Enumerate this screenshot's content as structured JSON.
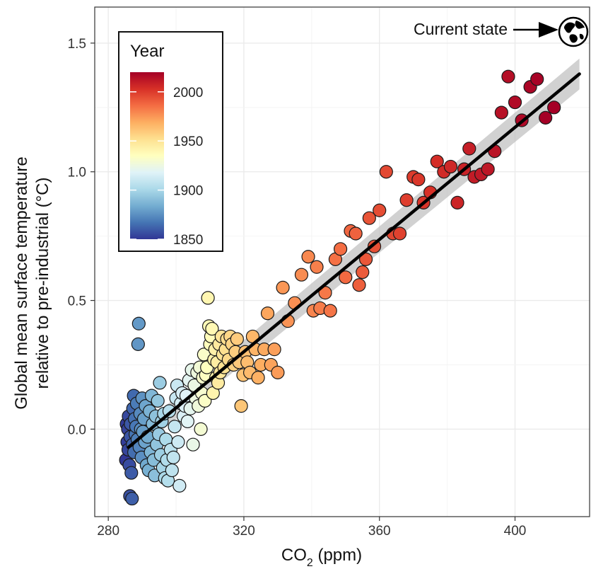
{
  "chart_data": {
    "type": "scatter",
    "title": "",
    "xlabel": "CO",
    "xlabel_subscript": "2",
    "xlabel_suffix": " (ppm)",
    "ylabel_line1": "Global mean surface temperature",
    "ylabel_line2": "relative to pre-industrial (°C)",
    "xlim": [
      276,
      422
    ],
    "ylim": [
      -0.34,
      1.64
    ],
    "xticks": [
      280,
      320,
      360,
      400
    ],
    "xtick_labels": [
      "280",
      "320",
      "360",
      "400"
    ],
    "yticks": [
      0.0,
      0.5,
      1.0,
      1.5
    ],
    "ytick_labels": [
      "0.0",
      "0.5",
      "1.0",
      "1.5"
    ],
    "grid": true,
    "legend": {
      "title": "Year",
      "placement": "top-left",
      "range": [
        1850,
        2020
      ],
      "tick_values": [
        1850,
        1900,
        1950,
        2000
      ],
      "tick_labels": [
        "1850",
        "1900",
        "1950",
        "2000"
      ],
      "colors": [
        "#313695",
        "#4575b4",
        "#74add1",
        "#abd9e9",
        "#e0f3f8",
        "#ffffbf",
        "#fee090",
        "#fdae61",
        "#f46d43",
        "#d73027",
        "#a50026"
      ]
    },
    "fit_line": {
      "x": [
        286,
        419
      ],
      "y": [
        -0.07,
        1.38
      ],
      "ci_halfwidth_start": 0.04,
      "ci_halfwidth_end": 0.06,
      "color": "#000000"
    },
    "annotation": {
      "text": "Current state",
      "arrow_to_x": 418,
      "arrow_y": 1.54,
      "icon": "globe-icon"
    },
    "points": [
      {
        "x": 285.2,
        "y": -0.12,
        "year": 1850
      },
      {
        "x": 285.4,
        "y": 0.02,
        "year": 1851
      },
      {
        "x": 285.6,
        "y": -0.05,
        "year": 1852
      },
      {
        "x": 285.8,
        "y": 0.0,
        "year": 1853
      },
      {
        "x": 285.9,
        "y": -0.08,
        "year": 1854
      },
      {
        "x": 286.0,
        "y": 0.05,
        "year": 1855
      },
      {
        "x": 286.2,
        "y": -0.14,
        "year": 1856
      },
      {
        "x": 286.4,
        "y": -0.26,
        "year": 1857
      },
      {
        "x": 286.5,
        "y": -0.03,
        "year": 1858
      },
      {
        "x": 286.6,
        "y": 0.02,
        "year": 1859
      },
      {
        "x": 286.8,
        "y": -0.17,
        "year": 1860
      },
      {
        "x": 287.0,
        "y": -0.27,
        "year": 1861
      },
      {
        "x": 287.2,
        "y": -0.06,
        "year": 1862
      },
      {
        "x": 287.3,
        "y": 0.08,
        "year": 1863
      },
      {
        "x": 287.5,
        "y": 0.13,
        "year": 1864
      },
      {
        "x": 287.6,
        "y": -0.09,
        "year": 1865
      },
      {
        "x": 287.8,
        "y": 0.04,
        "year": 1866
      },
      {
        "x": 288.0,
        "y": -0.02,
        "year": 1867
      },
      {
        "x": 288.2,
        "y": 0.01,
        "year": 1868
      },
      {
        "x": 288.4,
        "y": 0.1,
        "year": 1869
      },
      {
        "x": 288.6,
        "y": -0.04,
        "year": 1870
      },
      {
        "x": 288.8,
        "y": 0.33,
        "year": 1877
      },
      {
        "x": 289.0,
        "y": 0.41,
        "year": 1878
      },
      {
        "x": 289.2,
        "y": -0.07,
        "year": 1872
      },
      {
        "x": 289.4,
        "y": 0.06,
        "year": 1873
      },
      {
        "x": 289.6,
        "y": 0.0,
        "year": 1874
      },
      {
        "x": 289.8,
        "y": -0.11,
        "year": 1875
      },
      {
        "x": 290.0,
        "y": 0.12,
        "year": 1876
      },
      {
        "x": 290.2,
        "y": -0.01,
        "year": 1879
      },
      {
        "x": 290.5,
        "y": 0.04,
        "year": 1880
      },
      {
        "x": 290.8,
        "y": -0.05,
        "year": 1881
      },
      {
        "x": 291.0,
        "y": 0.09,
        "year": 1882
      },
      {
        "x": 291.3,
        "y": -0.14,
        "year": 1883
      },
      {
        "x": 291.6,
        "y": -0.03,
        "year": 1884
      },
      {
        "x": 291.9,
        "y": -0.16,
        "year": 1885
      },
      {
        "x": 292.2,
        "y": 0.07,
        "year": 1886
      },
      {
        "x": 292.5,
        "y": -0.09,
        "year": 1887
      },
      {
        "x": 292.8,
        "y": 0.13,
        "year": 1888
      },
      {
        "x": 293.1,
        "y": 0.02,
        "year": 1889
      },
      {
        "x": 293.4,
        "y": -0.12,
        "year": 1890
      },
      {
        "x": 293.7,
        "y": -0.18,
        "year": 1891
      },
      {
        "x": 294.0,
        "y": 0.05,
        "year": 1892
      },
      {
        "x": 294.3,
        "y": -0.06,
        "year": 1893
      },
      {
        "x": 294.6,
        "y": 0.11,
        "year": 1894
      },
      {
        "x": 294.9,
        "y": -0.02,
        "year": 1895
      },
      {
        "x": 295.2,
        "y": 0.18,
        "year": 1896
      },
      {
        "x": 295.5,
        "y": -0.1,
        "year": 1897
      },
      {
        "x": 295.8,
        "y": 0.03,
        "year": 1898
      },
      {
        "x": 296.1,
        "y": -0.15,
        "year": 1899
      },
      {
        "x": 296.4,
        "y": 0.06,
        "year": 1900
      },
      {
        "x": 296.7,
        "y": -0.19,
        "year": 1901
      },
      {
        "x": 297.0,
        "y": -0.04,
        "year": 1902
      },
      {
        "x": 297.3,
        "y": -0.12,
        "year": 1903
      },
      {
        "x": 297.6,
        "y": -0.2,
        "year": 1904
      },
      {
        "x": 298.0,
        "y": 0.07,
        "year": 1905
      },
      {
        "x": 298.4,
        "y": -0.08,
        "year": 1906
      },
      {
        "x": 298.8,
        "y": -0.16,
        "year": 1907
      },
      {
        "x": 299.2,
        "y": -0.11,
        "year": 1908
      },
      {
        "x": 299.6,
        "y": 0.01,
        "year": 1909
      },
      {
        "x": 300.0,
        "y": 0.12,
        "year": 1910
      },
      {
        "x": 300.3,
        "y": 0.17,
        "year": 1911
      },
      {
        "x": 300.6,
        "y": -0.05,
        "year": 1912
      },
      {
        "x": 301.0,
        "y": -0.22,
        "year": 1913
      },
      {
        "x": 301.4,
        "y": 0.1,
        "year": 1914
      },
      {
        "x": 301.8,
        "y": 0.14,
        "year": 1915
      },
      {
        "x": 302.2,
        "y": 0.05,
        "year": 1916
      },
      {
        "x": 302.6,
        "y": 0.09,
        "year": 1917
      },
      {
        "x": 303.0,
        "y": 0.13,
        "year": 1918
      },
      {
        "x": 303.4,
        "y": 0.03,
        "year": 1919
      },
      {
        "x": 303.8,
        "y": 0.19,
        "year": 1920
      },
      {
        "x": 304.2,
        "y": 0.08,
        "year": 1921
      },
      {
        "x": 304.6,
        "y": 0.23,
        "year": 1922
      },
      {
        "x": 305.0,
        "y": -0.06,
        "year": 1923
      },
      {
        "x": 305.4,
        "y": 0.17,
        "year": 1924
      },
      {
        "x": 305.8,
        "y": 0.12,
        "year": 1925
      },
      {
        "x": 306.2,
        "y": 0.22,
        "year": 1926
      },
      {
        "x": 306.6,
        "y": 0.09,
        "year": 1927
      },
      {
        "x": 307.0,
        "y": 0.24,
        "year": 1928
      },
      {
        "x": 307.3,
        "y": 0.0,
        "year": 1929
      },
      {
        "x": 307.6,
        "y": 0.14,
        "year": 1930
      },
      {
        "x": 307.9,
        "y": 0.2,
        "year": 1931
      },
      {
        "x": 308.2,
        "y": 0.29,
        "year": 1932
      },
      {
        "x": 308.5,
        "y": 0.11,
        "year": 1933
      },
      {
        "x": 308.8,
        "y": 0.21,
        "year": 1934
      },
      {
        "x": 309.1,
        "y": 0.24,
        "year": 1935
      },
      {
        "x": 309.4,
        "y": 0.51,
        "year": 1940
      },
      {
        "x": 309.7,
        "y": 0.4,
        "year": 1938
      },
      {
        "x": 310.0,
        "y": 0.33,
        "year": 1936
      },
      {
        "x": 310.3,
        "y": 0.36,
        "year": 1937
      },
      {
        "x": 310.6,
        "y": 0.39,
        "year": 1939
      },
      {
        "x": 310.9,
        "y": 0.14,
        "year": 1941
      },
      {
        "x": 311.2,
        "y": 0.27,
        "year": 1942
      },
      {
        "x": 311.5,
        "y": 0.31,
        "year": 1943
      },
      {
        "x": 311.8,
        "y": 0.2,
        "year": 1944
      },
      {
        "x": 312.1,
        "y": 0.26,
        "year": 1945
      },
      {
        "x": 312.4,
        "y": 0.18,
        "year": 1946
      },
      {
        "x": 312.7,
        "y": 0.33,
        "year": 1947
      },
      {
        "x": 313.0,
        "y": 0.22,
        "year": 1948
      },
      {
        "x": 313.4,
        "y": 0.36,
        "year": 1949
      },
      {
        "x": 313.8,
        "y": 0.29,
        "year": 1950
      },
      {
        "x": 314.2,
        "y": 0.24,
        "year": 1951
      },
      {
        "x": 314.6,
        "y": 0.31,
        "year": 1952
      },
      {
        "x": 315.0,
        "y": 0.35,
        "year": 1953
      },
      {
        "x": 315.5,
        "y": 0.27,
        "year": 1954
      },
      {
        "x": 316.0,
        "y": 0.36,
        "year": 1955
      },
      {
        "x": 316.5,
        "y": 0.33,
        "year": 1956
      },
      {
        "x": 317.0,
        "y": 0.25,
        "year": 1957
      },
      {
        "x": 317.5,
        "y": 0.3,
        "year": 1958
      },
      {
        "x": 318.0,
        "y": 0.35,
        "year": 1959
      },
      {
        "x": 318.6,
        "y": 0.26,
        "year": 1960
      },
      {
        "x": 319.2,
        "y": 0.09,
        "year": 1961
      },
      {
        "x": 319.8,
        "y": 0.21,
        "year": 1962
      },
      {
        "x": 320.4,
        "y": 0.3,
        "year": 1963
      },
      {
        "x": 321.0,
        "y": 0.26,
        "year": 1964
      },
      {
        "x": 321.8,
        "y": 0.22,
        "year": 1965
      },
      {
        "x": 322.6,
        "y": 0.36,
        "year": 1966
      },
      {
        "x": 323.4,
        "y": 0.31,
        "year": 1967
      },
      {
        "x": 324.2,
        "y": 0.2,
        "year": 1968
      },
      {
        "x": 325.0,
        "y": 0.25,
        "year": 1969
      },
      {
        "x": 326.0,
        "y": 0.31,
        "year": 1970
      },
      {
        "x": 327.0,
        "y": 0.45,
        "year": 1971
      },
      {
        "x": 328.0,
        "y": 0.25,
        "year": 1972
      },
      {
        "x": 329.0,
        "y": 0.31,
        "year": 1973
      },
      {
        "x": 330.0,
        "y": 0.22,
        "year": 1974
      },
      {
        "x": 331.5,
        "y": 0.55,
        "year": 1975
      },
      {
        "x": 333.0,
        "y": 0.42,
        "year": 1976
      },
      {
        "x": 335.0,
        "y": 0.49,
        "year": 1977
      },
      {
        "x": 337.0,
        "y": 0.6,
        "year": 1978
      },
      {
        "x": 339.0,
        "y": 0.67,
        "year": 1979
      },
      {
        "x": 340.5,
        "y": 0.46,
        "year": 1980
      },
      {
        "x": 341.5,
        "y": 0.63,
        "year": 1981
      },
      {
        "x": 342.5,
        "y": 0.47,
        "year": 1982
      },
      {
        "x": 344.0,
        "y": 0.53,
        "year": 1983
      },
      {
        "x": 345.5,
        "y": 0.46,
        "year": 1984
      },
      {
        "x": 347.0,
        "y": 0.66,
        "year": 1985
      },
      {
        "x": 348.5,
        "y": 0.7,
        "year": 1986
      },
      {
        "x": 350.0,
        "y": 0.59,
        "year": 1987
      },
      {
        "x": 351.5,
        "y": 0.77,
        "year": 1988
      },
      {
        "x": 353.0,
        "y": 0.76,
        "year": 1989
      },
      {
        "x": 354.0,
        "y": 0.56,
        "year": 1990
      },
      {
        "x": 355.0,
        "y": 0.61,
        "year": 1991
      },
      {
        "x": 356.0,
        "y": 0.66,
        "year": 1992
      },
      {
        "x": 357.0,
        "y": 0.82,
        "year": 1993
      },
      {
        "x": 358.5,
        "y": 0.71,
        "year": 1994
      },
      {
        "x": 360.0,
        "y": 0.85,
        "year": 1995
      },
      {
        "x": 362.0,
        "y": 1.0,
        "year": 1996
      },
      {
        "x": 364.0,
        "y": 0.76,
        "year": 1997
      },
      {
        "x": 366.0,
        "y": 0.76,
        "year": 1998
      },
      {
        "x": 368.0,
        "y": 0.89,
        "year": 1999
      },
      {
        "x": 370.0,
        "y": 0.98,
        "year": 2000
      },
      {
        "x": 371.5,
        "y": 0.97,
        "year": 2001
      },
      {
        "x": 373.0,
        "y": 0.88,
        "year": 2002
      },
      {
        "x": 375.0,
        "y": 0.92,
        "year": 2003
      },
      {
        "x": 377.0,
        "y": 1.04,
        "year": 2004
      },
      {
        "x": 379.0,
        "y": 1.0,
        "year": 2005
      },
      {
        "x": 381.0,
        "y": 1.02,
        "year": 2006
      },
      {
        "x": 383.0,
        "y": 0.88,
        "year": 2007
      },
      {
        "x": 385.0,
        "y": 1.01,
        "year": 2008
      },
      {
        "x": 386.5,
        "y": 1.09,
        "year": 2009
      },
      {
        "x": 388.0,
        "y": 0.98,
        "year": 2010
      },
      {
        "x": 390.0,
        "y": 0.99,
        "year": 2011
      },
      {
        "x": 392.0,
        "y": 1.01,
        "year": 2012
      },
      {
        "x": 394.0,
        "y": 1.08,
        "year": 2013
      },
      {
        "x": 396.0,
        "y": 1.23,
        "year": 2014
      },
      {
        "x": 398.0,
        "y": 1.37,
        "year": 2015
      },
      {
        "x": 400.0,
        "y": 1.27,
        "year": 2016
      },
      {
        "x": 402.0,
        "y": 1.2,
        "year": 2017
      },
      {
        "x": 404.5,
        "y": 1.33,
        "year": 2018
      },
      {
        "x": 406.5,
        "y": 1.36,
        "year": 2019
      },
      {
        "x": 409.0,
        "y": 1.21,
        "year": 2020
      },
      {
        "x": 411.5,
        "y": 1.25,
        "year": 2021
      }
    ]
  }
}
